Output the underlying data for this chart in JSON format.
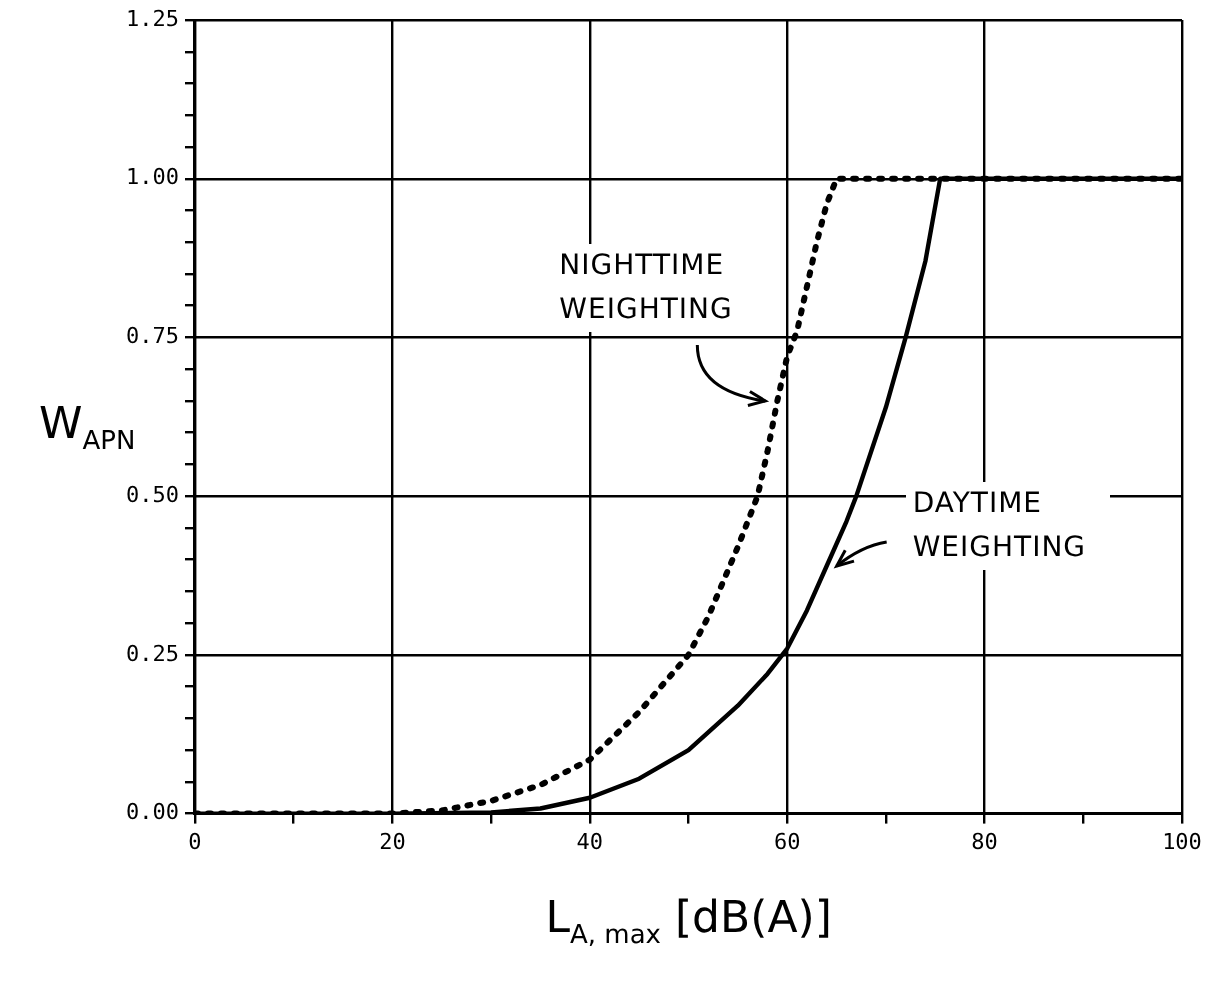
{
  "chart_data": {
    "type": "line",
    "xlabel": "L$_{A, max}$ [dB(A)]",
    "ylabel": "W$_{APN}$",
    "series": [
      {
        "name": "NIGHTTIME WEIGHTING",
        "color": "#000000",
        "line_style": "dotted",
        "x": [
          0,
          10,
          20,
          25,
          30,
          35,
          40,
          45,
          50,
          52,
          55,
          57,
          58,
          59,
          60,
          61,
          62,
          63,
          64,
          65,
          70,
          75,
          80,
          85,
          90,
          95,
          100
        ],
        "values": [
          0,
          0,
          0,
          0.005,
          0.02,
          0.045,
          0.085,
          0.16,
          0.25,
          0.31,
          0.42,
          0.5,
          0.57,
          0.65,
          0.72,
          0.76,
          0.83,
          0.9,
          0.96,
          1.0,
          1.0,
          1.0,
          1.0,
          1.0,
          1.0,
          1.0,
          1.0
        ]
      },
      {
        "name": "DAYTIME WEIGHTING",
        "color": "#000000",
        "line_style": "solid",
        "x": [
          0,
          10,
          20,
          30,
          35,
          40,
          45,
          50,
          55,
          58,
          60,
          62,
          64,
          66,
          67,
          70,
          72,
          74,
          75.5,
          80,
          90,
          100
        ],
        "values": [
          0,
          0,
          0,
          0.002,
          0.008,
          0.025,
          0.055,
          0.1,
          0.17,
          0.22,
          0.26,
          0.32,
          0.39,
          0.46,
          0.5,
          0.64,
          0.75,
          0.87,
          1.0,
          1.0,
          1.0,
          1.0
        ]
      }
    ],
    "xlim": [
      0,
      100
    ],
    "xticks": [
      {
        "value": 0,
        "label": "0"
      },
      {
        "value": 10,
        "label": null
      },
      {
        "value": 20,
        "label": "20"
      },
      {
        "value": 30,
        "label": null
      },
      {
        "value": 40,
        "label": "40"
      },
      {
        "value": 50,
        "label": null
      },
      {
        "value": 60,
        "label": "60"
      },
      {
        "value": 70,
        "label": null
      },
      {
        "value": 80,
        "label": "80"
      },
      {
        "value": 90,
        "label": null
      },
      {
        "value": 100,
        "label": "100"
      }
    ],
    "ylim": [
      0,
      1.25
    ],
    "yticks": [
      {
        "value": 0,
        "label": "0.00"
      },
      {
        "value": 0.05,
        "label": null
      },
      {
        "value": 0.1,
        "label": null
      },
      {
        "value": 0.15,
        "label": null
      },
      {
        "value": 0.2,
        "label": null
      },
      {
        "value": 0.25,
        "label": "0.25"
      },
      {
        "value": 0.3,
        "label": null
      },
      {
        "value": 0.35,
        "label": null
      },
      {
        "value": 0.4,
        "label": null
      },
      {
        "value": 0.45,
        "label": null
      },
      {
        "value": 0.5,
        "label": "0.50"
      },
      {
        "value": 0.55,
        "label": null
      },
      {
        "value": 0.6,
        "label": null
      },
      {
        "value": 0.65,
        "label": null
      },
      {
        "value": 0.7,
        "label": null
      },
      {
        "value": 0.75,
        "label": "0.75"
      },
      {
        "value": 0.8,
        "label": null
      },
      {
        "value": 0.85,
        "label": null
      },
      {
        "value": 0.9,
        "label": null
      },
      {
        "value": 0.95,
        "label": null
      },
      {
        "value": 1.0,
        "label": "1.00"
      },
      {
        "value": 1.05,
        "label": null
      },
      {
        "value": 1.1,
        "label": null
      },
      {
        "value": 1.15,
        "label": null
      },
      {
        "value": 1.2,
        "label": null
      },
      {
        "value": 1.25,
        "label": "1.25"
      }
    ],
    "grid": true,
    "legend": false,
    "marker": "none"
  }
}
